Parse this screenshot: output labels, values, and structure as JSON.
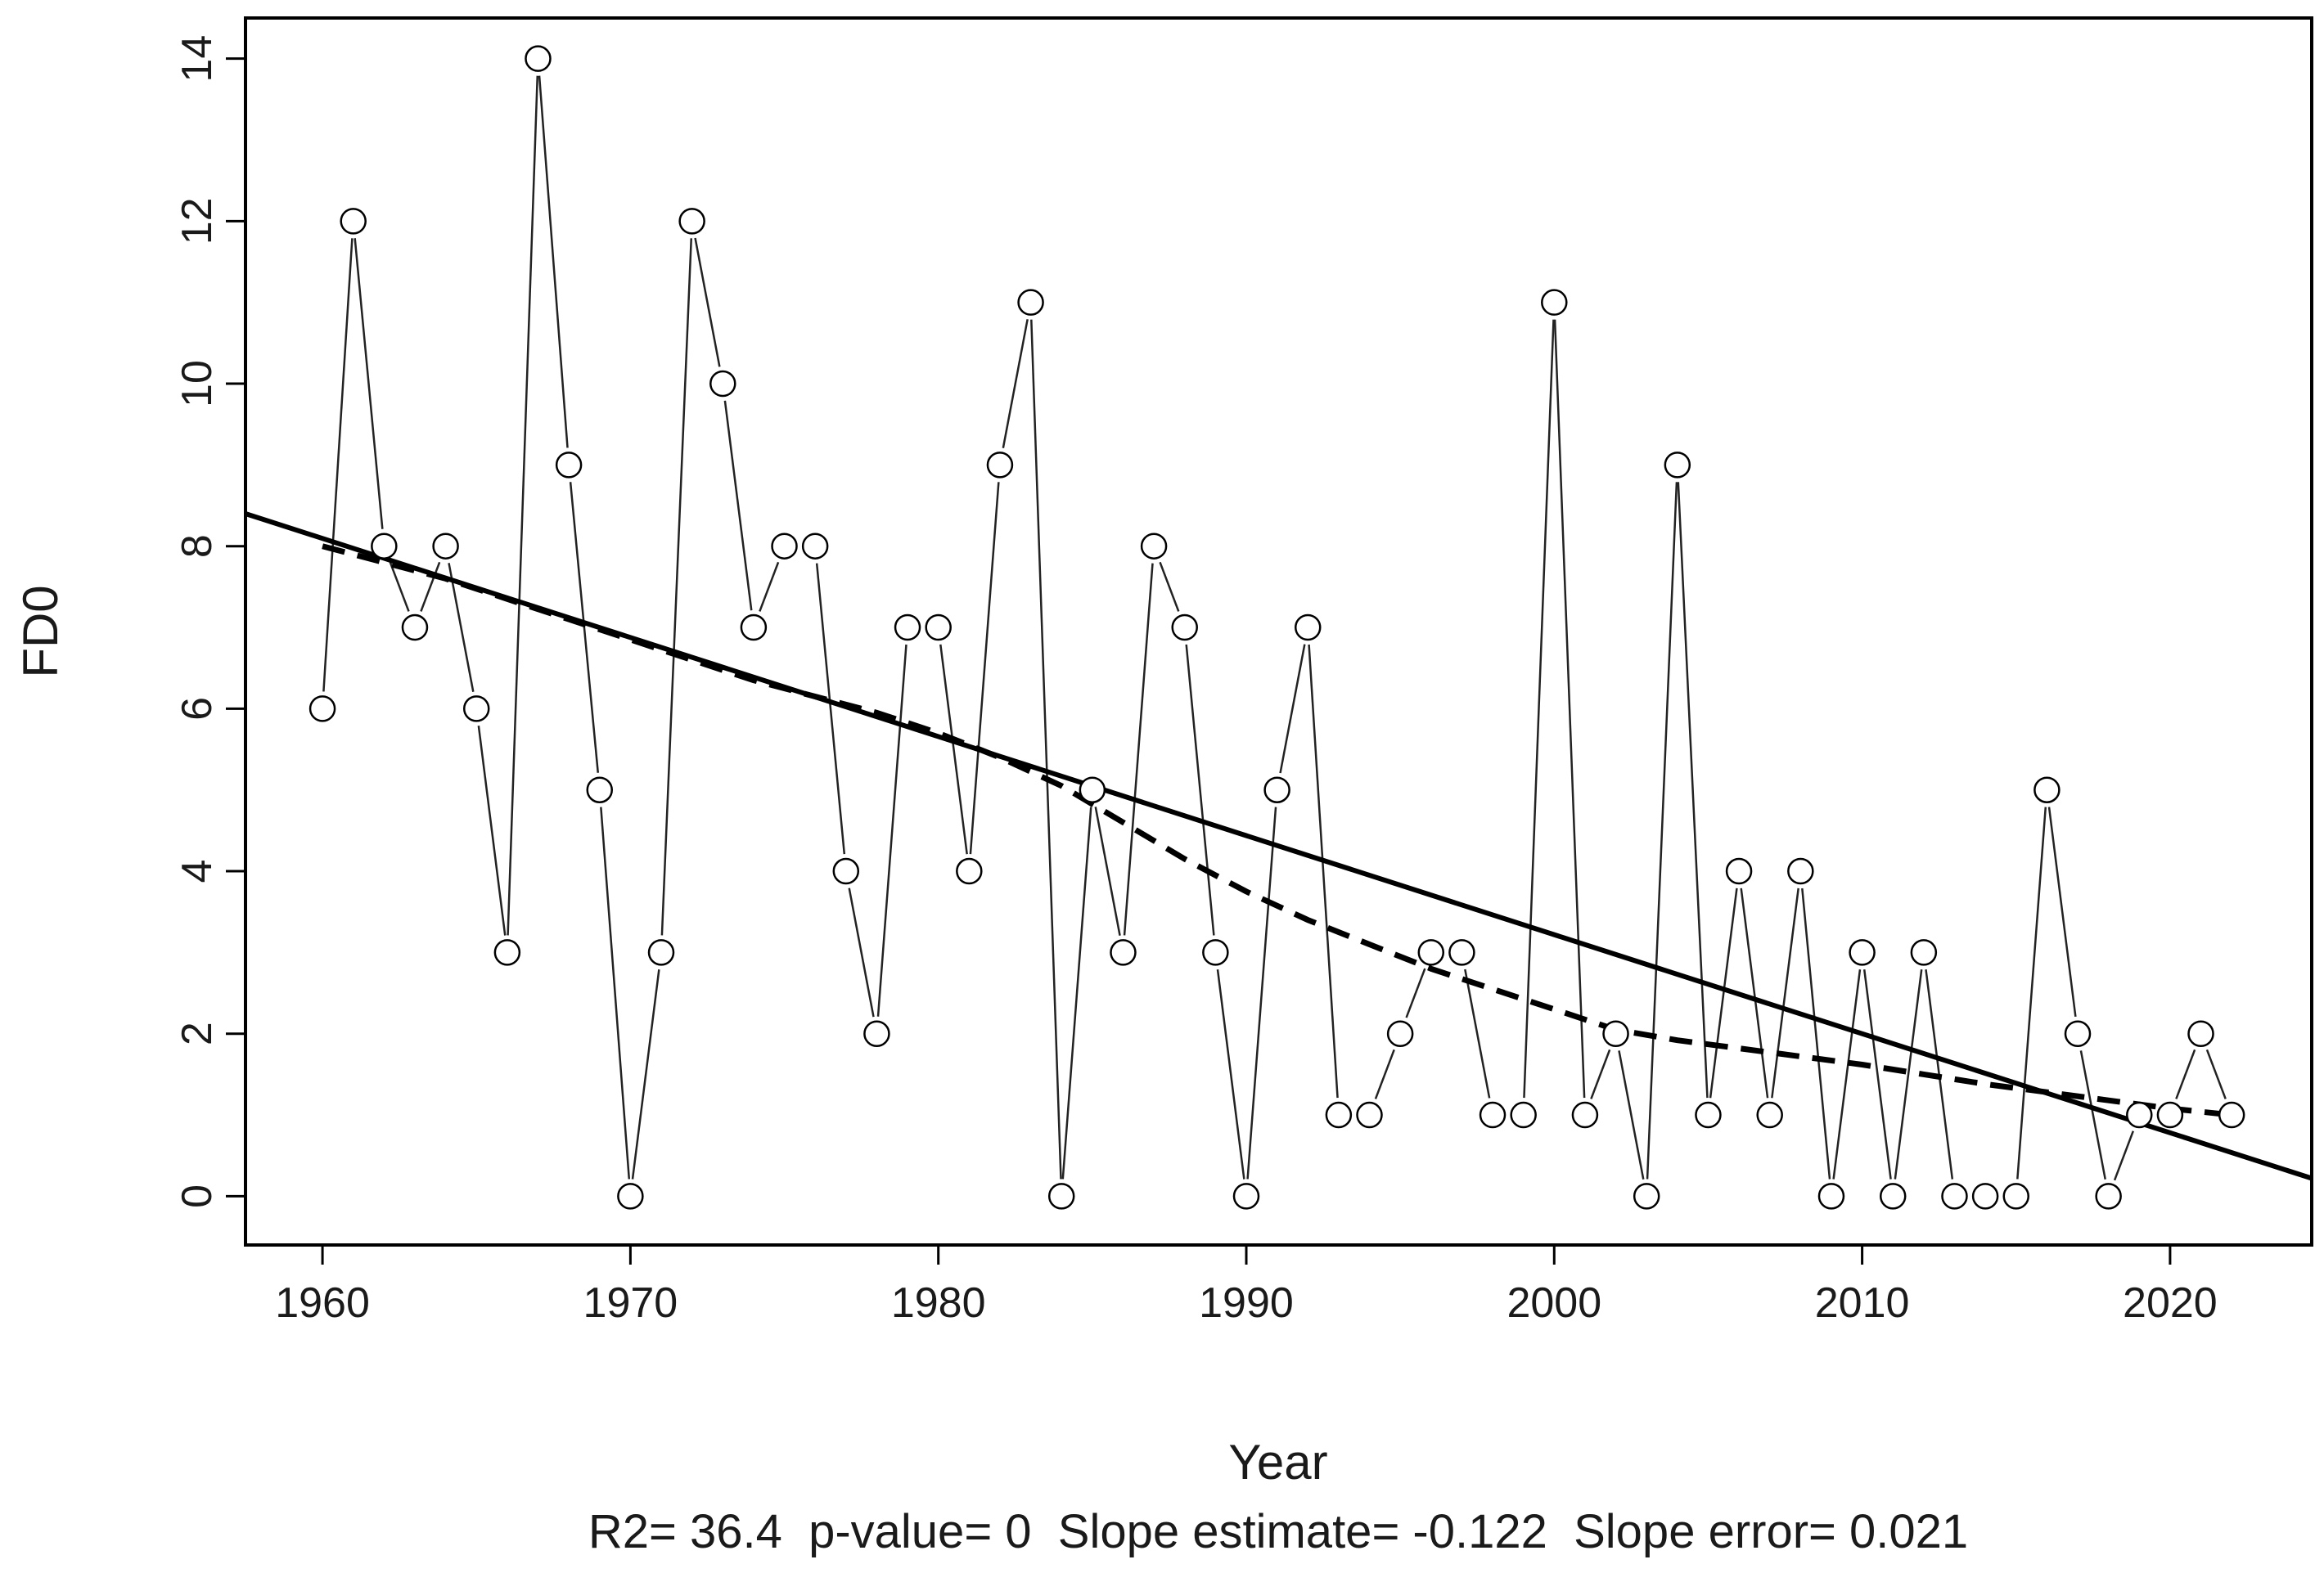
{
  "chart_data": {
    "type": "line",
    "xlabel": "Year",
    "ylabel": "FD0",
    "xlim": [
      1957.5,
      2024.6
    ],
    "ylim": [
      -0.6,
      14.5
    ],
    "xticks": [
      1960,
      1970,
      1980,
      1990,
      2000,
      2010,
      2020
    ],
    "yticks": [
      0,
      2,
      4,
      6,
      8,
      10,
      12,
      14
    ],
    "grid": false,
    "legend": "none",
    "footer": "R2= 36.4  p-value= 0  Slope estimate= -0.122  Slope error= 0.021",
    "series": [
      {
        "style": "line-with-open-circles",
        "x": [
          1960,
          1961,
          1962,
          1963,
          1964,
          1965,
          1966,
          1967,
          1968,
          1969,
          1970,
          1971,
          1972,
          1973,
          1974,
          1975,
          1976,
          1977,
          1978,
          1979,
          1980,
          1981,
          1982,
          1983,
          1984,
          1985,
          1986,
          1987,
          1988,
          1989,
          1990,
          1991,
          1992,
          1993,
          1994,
          1995,
          1996,
          1997,
          1998,
          1999,
          2000,
          2001,
          2002,
          2003,
          2004,
          2005,
          2006,
          2007,
          2008,
          2009,
          2010,
          2011,
          2012,
          2013,
          2014,
          2015,
          2016,
          2017,
          2018,
          2019,
          2020,
          2021,
          2022
        ],
        "y": [
          6,
          12,
          8,
          7,
          8,
          6,
          3,
          14,
          9,
          5,
          0,
          3,
          12,
          10,
          7,
          8,
          8,
          4,
          2,
          7,
          7,
          4,
          9,
          11,
          0,
          5,
          3,
          8,
          7,
          3,
          0,
          5,
          7,
          1,
          1,
          2,
          3,
          3,
          1,
          1,
          11,
          1,
          2,
          0,
          9,
          1,
          4,
          1,
          4,
          0,
          3,
          0,
          3,
          0,
          0,
          0,
          5,
          2,
          0,
          1,
          1,
          2,
          1
        ]
      },
      {
        "style": "solid-trend",
        "x": [
          1957.5,
          2024.6
        ],
        "y": [
          8.4,
          0.22
        ]
      },
      {
        "style": "dashed-smooth",
        "x": [
          1960,
          1962,
          1964,
          1966,
          1968,
          1970,
          1972,
          1974,
          1976,
          1978,
          1980,
          1982,
          1984,
          1986,
          1988,
          1990,
          1992,
          1994,
          1996,
          1998,
          2000,
          2002,
          2004,
          2006,
          2008,
          2010,
          2012,
          2014,
          2016,
          2018,
          2020,
          2022
        ],
        "y": [
          8.0,
          7.8,
          7.6,
          7.35,
          7.1,
          6.85,
          6.6,
          6.35,
          6.15,
          5.95,
          5.7,
          5.4,
          5.05,
          4.6,
          4.15,
          3.75,
          3.4,
          3.1,
          2.8,
          2.55,
          2.3,
          2.05,
          1.92,
          1.82,
          1.72,
          1.62,
          1.5,
          1.38,
          1.28,
          1.18,
          1.08,
          1.0
        ]
      }
    ]
  }
}
